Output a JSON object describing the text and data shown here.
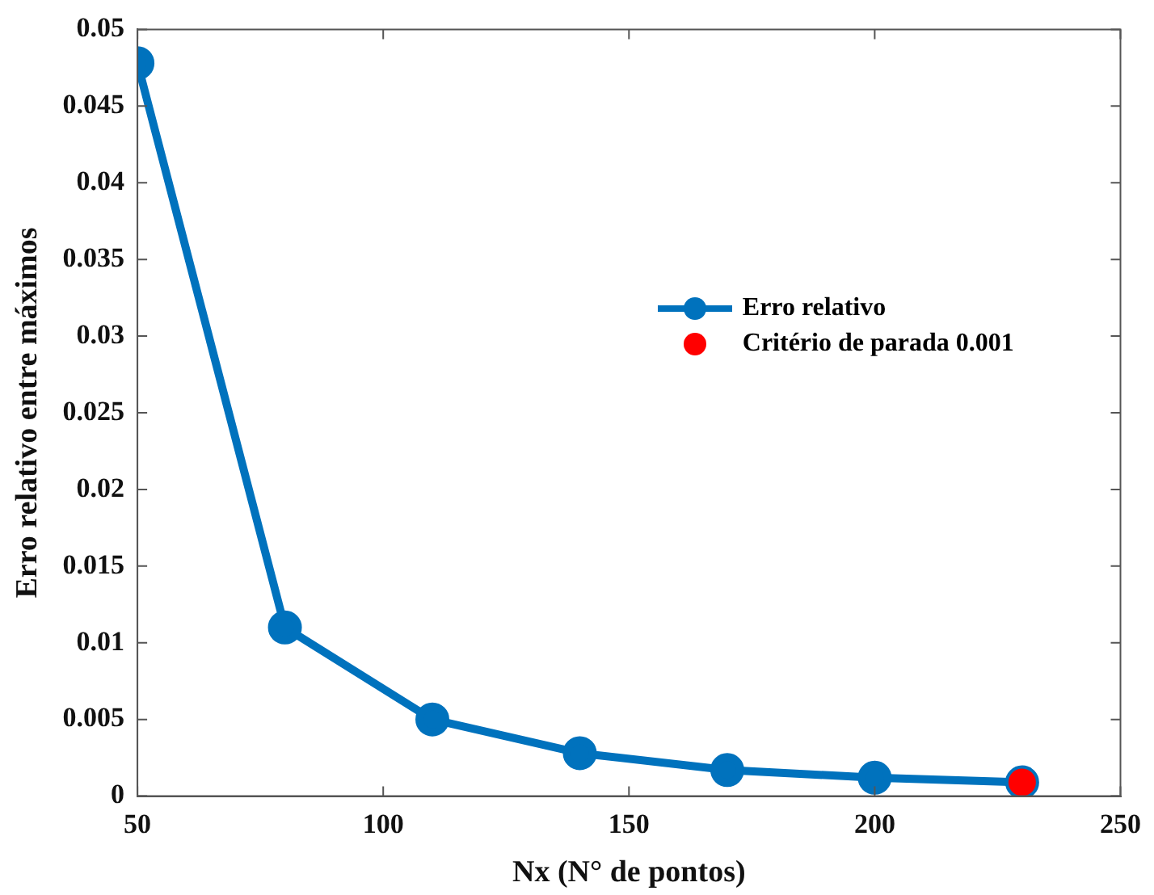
{
  "chart_data": {
    "type": "line",
    "xlabel": "Nx (N° de pontos)",
    "ylabel": "Erro relativo entre máximos",
    "xlim": [
      50,
      250
    ],
    "xticks": [
      50,
      100,
      150,
      200,
      250
    ],
    "ylim": [
      0,
      0.05
    ],
    "yticks": [
      0,
      0.005,
      0.01,
      0.015,
      0.02,
      0.025,
      0.03,
      0.035,
      0.04,
      0.045,
      0.05
    ],
    "grid": false,
    "legend": "right",
    "marker": "circle",
    "line_style": "solid",
    "series": [
      {
        "name": "Erro relativo",
        "color": "#0072bd",
        "x": [
          50,
          80,
          110,
          140,
          170,
          200,
          230
        ],
        "values": [
          0.0478,
          0.011,
          0.005,
          0.0028,
          0.0017,
          0.0012,
          0.0009
        ]
      },
      {
        "name": "Critério de parada 0.001",
        "type": "scatter",
        "color": "#ff0000",
        "x": [
          230
        ],
        "values": [
          0.0009
        ]
      }
    ]
  }
}
